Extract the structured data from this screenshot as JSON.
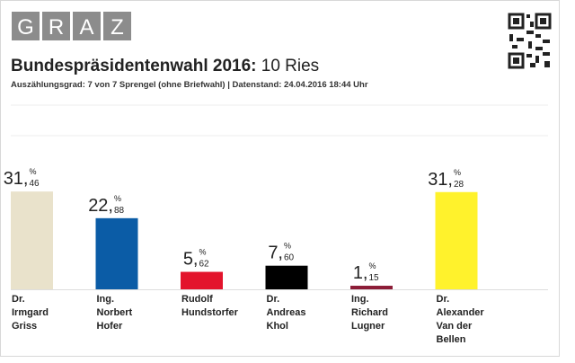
{
  "header": {
    "logo": [
      "G",
      "R",
      "A",
      "Z"
    ],
    "title": "Bundespräsidentenwahl 2016:",
    "title_place": "10 Ries",
    "subtitle": "Auszählungsgrad: 7 von 7 Sprengel (ohne Briefwahl) | Datenstand: 24.04.2016 18:44 Uhr"
  },
  "chart_data": {
    "type": "bar",
    "categories": [
      [
        "Dr.",
        "Irmgard",
        "Griss"
      ],
      [
        "Ing.",
        "Norbert",
        "Hofer"
      ],
      [
        "Rudolf",
        "Hundstorfer"
      ],
      [
        "Dr.",
        "Andreas",
        "Khol"
      ],
      [
        "Ing.",
        "Richard",
        "Lugner"
      ],
      [
        "Dr.",
        "Alexander",
        "Van der",
        "Bellen"
      ]
    ],
    "values": [
      31.46,
      22.88,
      5.62,
      7.6,
      1.15,
      31.28
    ],
    "value_labels": [
      {
        "whole": "31,",
        "fraction": "46"
      },
      {
        "whole": "22,",
        "fraction": "88"
      },
      {
        "whole": "5,",
        "fraction": "62"
      },
      {
        "whole": "7,",
        "fraction": "60"
      },
      {
        "whole": "1,",
        "fraction": "15"
      },
      {
        "whole": "31,",
        "fraction": "28"
      }
    ],
    "value_unit": "%",
    "colors": [
      "#e9e2cb",
      "#0b5ca6",
      "#e3142c",
      "#000000",
      "#8c1c37",
      "#fff22c"
    ],
    "ylim": [
      0,
      50
    ]
  }
}
